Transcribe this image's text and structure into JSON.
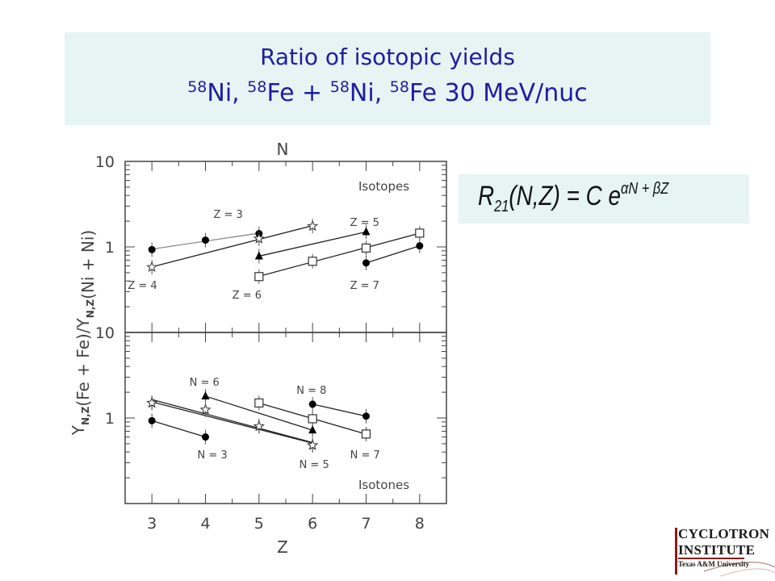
{
  "title": {
    "line1": "Ratio of isotopic yields",
    "line2": [
      {
        "sup": "58",
        "text": "Ni, "
      },
      {
        "sup": "58",
        "text": "Fe  + "
      },
      {
        "sup": "58",
        "text": "Ni, "
      },
      {
        "sup": "58",
        "text": "Fe 30 MeV/nuc"
      }
    ]
  },
  "formula": {
    "lhs_main": "R",
    "lhs_sub": "21",
    "lhs_args": "(N,Z) = C e",
    "exponent": "αN + βZ"
  },
  "logo": {
    "line1": "CYCLOTRON",
    "line2": "INSTITUTE",
    "line3": "Texas A&M University"
  },
  "chart_data": [
    {
      "type": "scatter",
      "panel": "top",
      "label": "Isotopes",
      "xlabel_top": "N",
      "ylabel": "Y_N,Z(Fe + Fe)/Y_N,Z(Ni + Ni)",
      "y_scale": "log",
      "ylim": [
        0.1,
        10
      ],
      "xlim": [
        2.5,
        8.5
      ],
      "ytick_labels": [
        "10",
        "1"
      ],
      "series": [
        {
          "name": "Z = 3",
          "marker": "circle",
          "x": [
            3,
            4,
            5
          ],
          "y": [
            0.93,
            1.2,
            1.43
          ],
          "fit_color": "#8a8a8a"
        },
        {
          "name": "Z = 4",
          "marker": "star",
          "x": [
            3,
            5,
            6
          ],
          "y": [
            0.58,
            1.25,
            1.75
          ]
        },
        {
          "name": "Z = 5",
          "marker": "triangle",
          "x": [
            5,
            7
          ],
          "y": [
            0.78,
            1.5
          ]
        },
        {
          "name": "Z = 6",
          "marker": "square",
          "x": [
            5,
            6,
            7,
            8
          ],
          "y": [
            0.45,
            0.68,
            0.97,
            1.45
          ]
        },
        {
          "name": "Z = 7",
          "marker": "circle",
          "x": [
            7,
            8
          ],
          "y": [
            0.65,
            1.03
          ]
        }
      ]
    },
    {
      "type": "scatter",
      "panel": "bottom",
      "label": "Isotones",
      "xlabel": "Z",
      "y_scale": "log",
      "ylim": [
        0.1,
        10
      ],
      "xlim": [
        2.5,
        8.5
      ],
      "xtick_labels": [
        "3",
        "4",
        "5",
        "6",
        "7",
        "8"
      ],
      "ytick_labels": [
        "10",
        "1"
      ],
      "series": [
        {
          "name": "N = 3",
          "marker": "circle",
          "x": [
            3,
            4
          ],
          "y": [
            0.93,
            0.6
          ]
        },
        {
          "name": "N = 4",
          "marker": "star",
          "x": [
            3,
            4,
            5,
            6
          ],
          "y": [
            1.5,
            1.25,
            0.8,
            0.48
          ]
        },
        {
          "name": "N = 5",
          "marker": "star",
          "x": [
            3,
            5,
            6
          ],
          "y": [
            1.5,
            0.8,
            0.48
          ]
        },
        {
          "name": "N = 6",
          "marker": "triangle",
          "x": [
            4,
            6
          ],
          "y": [
            1.8,
            0.72
          ]
        },
        {
          "name": "N = 7",
          "marker": "square",
          "x": [
            5,
            6,
            7
          ],
          "y": [
            1.5,
            0.98,
            0.65
          ]
        },
        {
          "name": "N = 8",
          "marker": "circle",
          "x": [
            6,
            7
          ],
          "y": [
            1.45,
            1.05
          ]
        }
      ],
      "series_labels": [
        "N = 6",
        "N = 8",
        "N = 3",
        "N = 5",
        "N = 7"
      ]
    }
  ]
}
